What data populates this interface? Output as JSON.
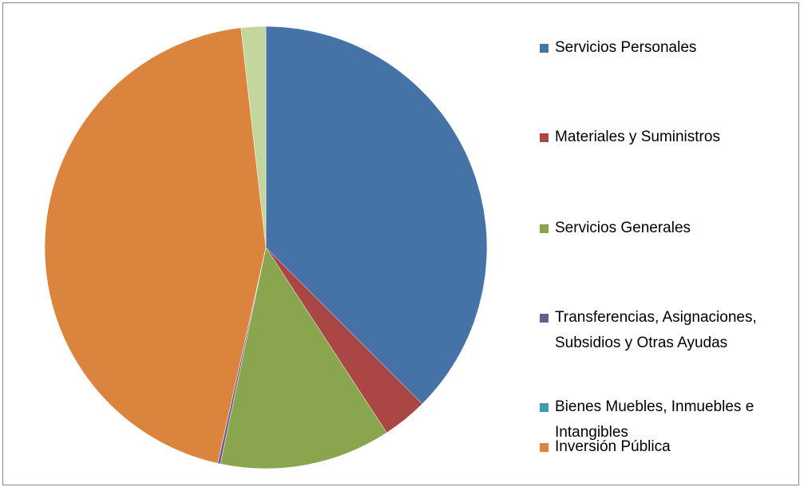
{
  "chart_data": {
    "type": "pie",
    "categories": [
      "Servicios Personales",
      "Materiales y Suministros",
      "Servicios Generales",
      "Transferencias, Asignaciones, Subsidios y Otras Ayudas",
      "Bienes Muebles, Inmuebles e Intangibles",
      "Inversión Pública",
      null
    ],
    "values": [
      37.5,
      3.3,
      12.5,
      0.2,
      0,
      44.7,
      1.8
    ],
    "colors": [
      "#4572a7",
      "#aa4643",
      "#89a54e",
      "#71588f",
      "#4198af",
      "#db843d",
      "#c3d69b"
    ],
    "legend": "right"
  }
}
